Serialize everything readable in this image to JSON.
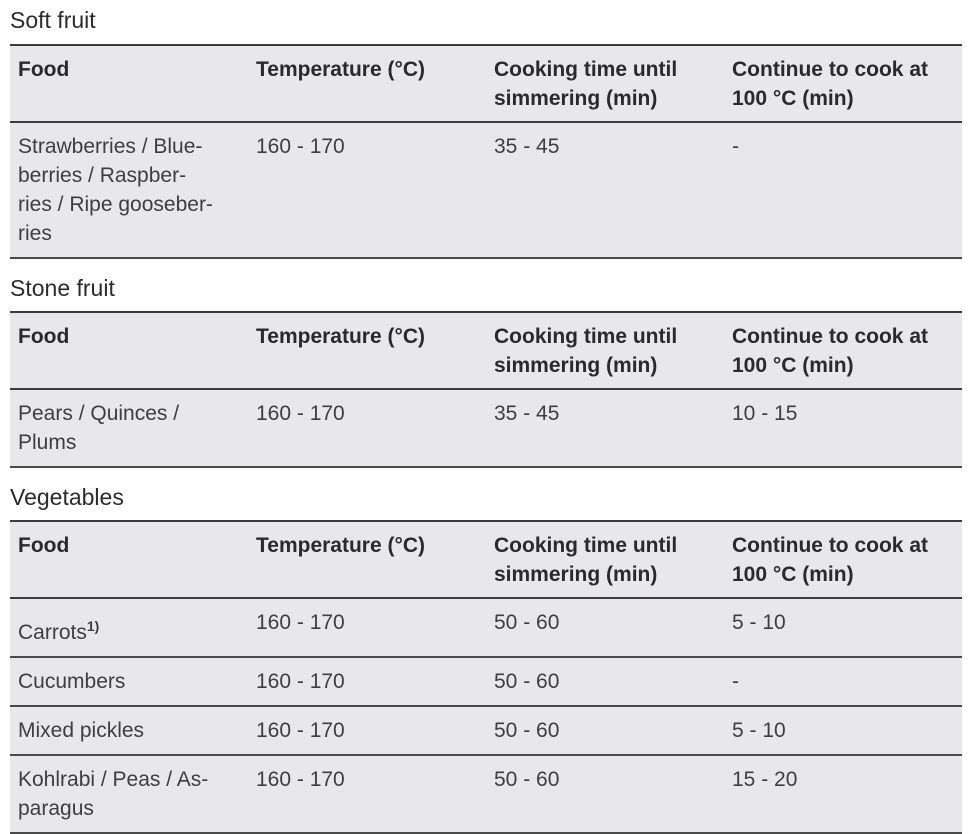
{
  "columns": [
    "Food",
    "Temperature (°C)",
    "Cooking time until\nsimmering (min)",
    "Continue to cook at\n100 °C (min)"
  ],
  "sections": [
    {
      "title": "Soft fruit",
      "rows": [
        {
          "food": "Strawberries / Blue-\nberries / Raspber-\nries / Ripe gooseber-\nries",
          "temperature": "160 - 170",
          "simmer": "35 - 45",
          "continue": "-"
        }
      ]
    },
    {
      "title": "Stone fruit",
      "rows": [
        {
          "food": "Pears / Quinces /\nPlums",
          "temperature": "160 - 170",
          "simmer": "35 - 45",
          "continue": "10 - 15"
        }
      ]
    },
    {
      "title": "Vegetables",
      "rows": [
        {
          "food": "Carrots",
          "footnote": "1)",
          "temperature": "160 - 170",
          "simmer": "50 - 60",
          "continue": "5 - 10"
        },
        {
          "food": "Cucumbers",
          "temperature": "160 - 170",
          "simmer": "50 - 60",
          "continue": "-"
        },
        {
          "food": "Mixed pickles",
          "temperature": "160 - 170",
          "simmer": "50 - 60",
          "continue": "5 - 10"
        },
        {
          "food": "Kohlrabi / Peas / As-\nparagus",
          "temperature": "160 - 170",
          "simmer": "50 - 60",
          "continue": "15 - 20"
        }
      ]
    }
  ]
}
